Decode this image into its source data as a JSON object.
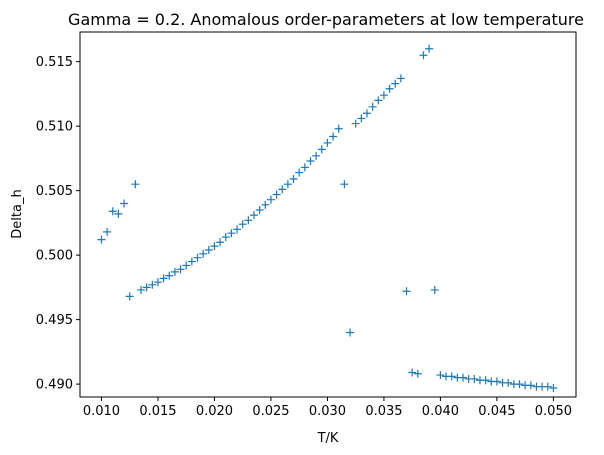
{
  "chart_data": {
    "type": "scatter",
    "title": "Gamma = 0.2. Anomalous order-parameters at low temperature",
    "xlabel": "T/K",
    "ylabel": "Delta_h",
    "xlim": [
      0.0081,
      0.052
    ],
    "ylim": [
      0.489,
      0.5173
    ],
    "xticks": [
      0.01,
      0.015,
      0.02,
      0.025,
      0.03,
      0.035,
      0.04,
      0.045,
      0.05
    ],
    "xtick_labels": [
      "0.010",
      "0.015",
      "0.020",
      "0.025",
      "0.030",
      "0.035",
      "0.040",
      "0.045",
      "0.050"
    ],
    "yticks": [
      0.49,
      0.495,
      0.5,
      0.505,
      0.51,
      0.515
    ],
    "ytick_labels": [
      "0.490",
      "0.495",
      "0.500",
      "0.505",
      "0.510",
      "0.515"
    ],
    "grid": false,
    "marker": "+",
    "color": "#1f77b4",
    "points": [
      [
        0.01,
        0.5012
      ],
      [
        0.0105,
        0.5018
      ],
      [
        0.011,
        0.5034
      ],
      [
        0.0115,
        0.5032
      ],
      [
        0.012,
        0.504
      ],
      [
        0.0125,
        0.4968
      ],
      [
        0.013,
        0.5055
      ],
      [
        0.0135,
        0.4973
      ],
      [
        0.014,
        0.4975
      ],
      [
        0.0145,
        0.4977
      ],
      [
        0.015,
        0.4979
      ],
      [
        0.0155,
        0.4982
      ],
      [
        0.016,
        0.4984
      ],
      [
        0.0165,
        0.4987
      ],
      [
        0.017,
        0.4989
      ],
      [
        0.0175,
        0.4992
      ],
      [
        0.018,
        0.4995
      ],
      [
        0.0185,
        0.4998
      ],
      [
        0.019,
        0.5001
      ],
      [
        0.0195,
        0.5004
      ],
      [
        0.02,
        0.5007
      ],
      [
        0.0205,
        0.501
      ],
      [
        0.021,
        0.5014
      ],
      [
        0.0215,
        0.5017
      ],
      [
        0.022,
        0.502
      ],
      [
        0.0225,
        0.5024
      ],
      [
        0.023,
        0.5027
      ],
      [
        0.0235,
        0.5031
      ],
      [
        0.024,
        0.5035
      ],
      [
        0.0245,
        0.5039
      ],
      [
        0.025,
        0.5043
      ],
      [
        0.0255,
        0.5047
      ],
      [
        0.026,
        0.5051
      ],
      [
        0.0265,
        0.5055
      ],
      [
        0.027,
        0.5059
      ],
      [
        0.0275,
        0.5064
      ],
      [
        0.028,
        0.5068
      ],
      [
        0.0285,
        0.5073
      ],
      [
        0.029,
        0.5077
      ],
      [
        0.0295,
        0.5082
      ],
      [
        0.03,
        0.5087
      ],
      [
        0.0305,
        0.5092
      ],
      [
        0.031,
        0.5098
      ],
      [
        0.0315,
        0.5055
      ],
      [
        0.032,
        0.494
      ],
      [
        0.0325,
        0.5102
      ],
      [
        0.033,
        0.5106
      ],
      [
        0.0335,
        0.511
      ],
      [
        0.034,
        0.5115
      ],
      [
        0.0345,
        0.512
      ],
      [
        0.035,
        0.5124
      ],
      [
        0.0355,
        0.5129
      ],
      [
        0.036,
        0.5133
      ],
      [
        0.0365,
        0.5137
      ],
      [
        0.037,
        0.4972
      ],
      [
        0.0375,
        0.4909
      ],
      [
        0.038,
        0.4908
      ],
      [
        0.0385,
        0.5155
      ],
      [
        0.039,
        0.516
      ],
      [
        0.0395,
        0.4973
      ],
      [
        0.04,
        0.4907
      ],
      [
        0.0405,
        0.4906
      ],
      [
        0.041,
        0.4906
      ],
      [
        0.0415,
        0.4905
      ],
      [
        0.042,
        0.4905
      ],
      [
        0.0425,
        0.4904
      ],
      [
        0.043,
        0.4904
      ],
      [
        0.0435,
        0.4903
      ],
      [
        0.044,
        0.4903
      ],
      [
        0.0445,
        0.4902
      ],
      [
        0.045,
        0.4902
      ],
      [
        0.0455,
        0.4901
      ],
      [
        0.046,
        0.4901
      ],
      [
        0.0465,
        0.49
      ],
      [
        0.047,
        0.49
      ],
      [
        0.0475,
        0.4899
      ],
      [
        0.048,
        0.4899
      ],
      [
        0.0485,
        0.4898
      ],
      [
        0.049,
        0.4898
      ],
      [
        0.0495,
        0.4898
      ],
      [
        0.05,
        0.4897
      ]
    ]
  }
}
